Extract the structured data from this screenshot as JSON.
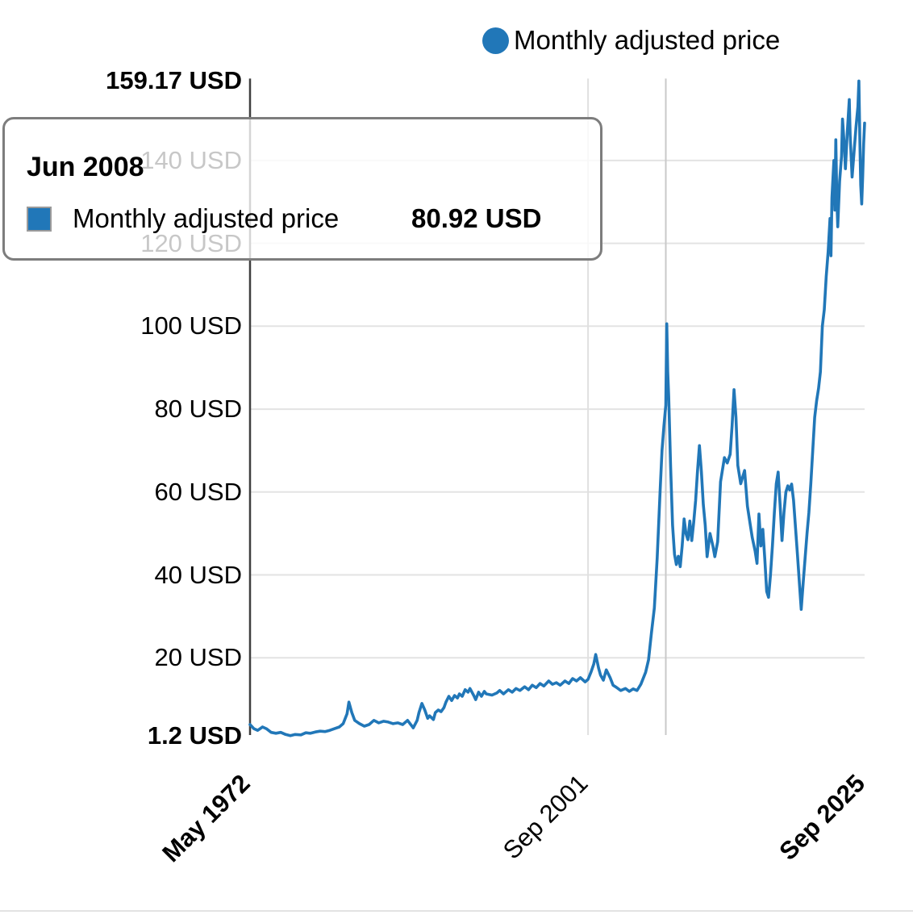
{
  "legend": {
    "label": "Monthly adjusted price"
  },
  "tooltip": {
    "title": "Jun 2008",
    "series_label": "Monthly adjusted price",
    "value": "80.92 USD"
  },
  "chart_data": {
    "type": "line",
    "title": "",
    "unit": "USD",
    "grid": true,
    "legend_position": "top",
    "ylim": [
      0,
      159.17
    ],
    "xlim": [
      "May 1972",
      "Sep 2025"
    ],
    "crosshair_x": "Jun 2008",
    "yticks": [
      {
        "value": 1.2,
        "label": "1.2 USD",
        "bold": true,
        "gridline": false
      },
      {
        "value": 20,
        "label": "20 USD",
        "bold": false,
        "gridline": true
      },
      {
        "value": 40,
        "label": "40 USD",
        "bold": false,
        "gridline": true
      },
      {
        "value": 60,
        "label": "60 USD",
        "bold": false,
        "gridline": true
      },
      {
        "value": 80,
        "label": "80 USD",
        "bold": false,
        "gridline": true
      },
      {
        "value": 100,
        "label": "100 USD",
        "bold": false,
        "gridline": true
      },
      {
        "value": 120,
        "label": "120 USD",
        "bold": false,
        "gridline": true
      },
      {
        "value": 140,
        "label": "140 USD",
        "bold": false,
        "gridline": true
      },
      {
        "value": 159.17,
        "label": "159.17 USD",
        "bold": true,
        "gridline": false
      }
    ],
    "xticks": [
      {
        "label": "May 1972",
        "bold": true,
        "gridline": false
      },
      {
        "label": "Sep 2001",
        "bold": false,
        "gridline": true
      },
      {
        "label": "Sep 2025",
        "bold": true,
        "gridline": false
      }
    ],
    "series": [
      {
        "name": "Monthly adjusted price",
        "color": "#2177b8",
        "points": [
          [
            "May 1972",
            3.9
          ],
          [
            "Sep 1972",
            2.9
          ],
          [
            "Jan 1973",
            2.5
          ],
          [
            "Jun 1973",
            3.3
          ],
          [
            "Oct 1973",
            2.9
          ],
          [
            "Mar 1974",
            2.0
          ],
          [
            "Aug 1974",
            1.8
          ],
          [
            "Jan 1975",
            2.0
          ],
          [
            "Jun 1975",
            1.5
          ],
          [
            "Nov 1975",
            1.2
          ],
          [
            "Apr 1976",
            1.5
          ],
          [
            "Oct 1976",
            1.4
          ],
          [
            "Mar 1977",
            1.9
          ],
          [
            "Aug 1977",
            1.8
          ],
          [
            "Jan 1978",
            2.1
          ],
          [
            "Jun 1978",
            2.3
          ],
          [
            "Nov 1978",
            2.2
          ],
          [
            "Apr 1979",
            2.5
          ],
          [
            "Sep 1979",
            2.9
          ],
          [
            "Feb 1980",
            3.3
          ],
          [
            "Jun 1980",
            4.1
          ],
          [
            "Oct 1980",
            6.5
          ],
          [
            "Dec 1980",
            9.3
          ],
          [
            "Mar 1981",
            6.8
          ],
          [
            "Jun 1981",
            4.9
          ],
          [
            "Nov 1981",
            4.1
          ],
          [
            "Apr 1982",
            3.5
          ],
          [
            "Sep 1982",
            3.9
          ],
          [
            "Feb 1983",
            4.9
          ],
          [
            "Jul 1983",
            4.3
          ],
          [
            "Dec 1983",
            4.7
          ],
          [
            "May 1984",
            4.5
          ],
          [
            "Oct 1984",
            4.1
          ],
          [
            "Mar 1985",
            4.3
          ],
          [
            "Aug 1985",
            3.9
          ],
          [
            "Jan 1986",
            4.9
          ],
          [
            "Jul 1986",
            3.1
          ],
          [
            "Nov 1986",
            4.9
          ],
          [
            "Jan 1987",
            6.8
          ],
          [
            "Apr 1987",
            9.0
          ],
          [
            "Jul 1987",
            7.4
          ],
          [
            "Oct 1987",
            5.4
          ],
          [
            "Dec 1987",
            6.0
          ],
          [
            "Apr 1988",
            5.1
          ],
          [
            "Jun 1988",
            6.8
          ],
          [
            "Sep 1988",
            7.4
          ],
          [
            "Dec 1988",
            7.0
          ],
          [
            "Mar 1989",
            8.0
          ],
          [
            "May 1989",
            9.3
          ],
          [
            "Aug 1989",
            10.7
          ],
          [
            "Nov 1989",
            9.7
          ],
          [
            "Feb 1990",
            10.9
          ],
          [
            "May 1990",
            10.3
          ],
          [
            "Jul 1990",
            11.3
          ],
          [
            "Oct 1990",
            10.7
          ],
          [
            "Jan 1991",
            12.3
          ],
          [
            "Apr 1991",
            11.7
          ],
          [
            "Jun 1991",
            12.6
          ],
          [
            "Oct 1991",
            10.9
          ],
          [
            "Dec 1991",
            9.9
          ],
          [
            "Mar 1992",
            11.7
          ],
          [
            "Jun 1992",
            10.7
          ],
          [
            "Sep 1992",
            11.9
          ],
          [
            "Nov 1992",
            11.3
          ],
          [
            "May 1993",
            11.0
          ],
          [
            "Oct 1993",
            11.5
          ],
          [
            "Jan 1994",
            12.1
          ],
          [
            "May 1994",
            11.3
          ],
          [
            "Oct 1994",
            12.3
          ],
          [
            "Feb 1995",
            11.7
          ],
          [
            "Jun 1995",
            12.6
          ],
          [
            "Oct 1995",
            12.1
          ],
          [
            "Mar 1996",
            13.0
          ],
          [
            "Jul 1996",
            12.3
          ],
          [
            "Nov 1996",
            13.4
          ],
          [
            "Mar 1997",
            12.8
          ],
          [
            "Jul 1997",
            13.8
          ],
          [
            "Nov 1997",
            13.2
          ],
          [
            "Apr 1998",
            14.4
          ],
          [
            "Aug 1998",
            13.6
          ],
          [
            "Dec 1998",
            14.0
          ],
          [
            "Apr 1999",
            13.4
          ],
          [
            "Sep 1999",
            14.4
          ],
          [
            "Jan 2000",
            13.8
          ],
          [
            "May 2000",
            15.0
          ],
          [
            "Sep 2000",
            14.4
          ],
          [
            "Jan 2001",
            15.2
          ],
          [
            "Jun 2001",
            14.2
          ],
          [
            "Sep 2001",
            14.8
          ],
          [
            "Dec 2001",
            16.5
          ],
          [
            "Mar 2002",
            18.5
          ],
          [
            "May 2002",
            20.8
          ],
          [
            "Aug 2002",
            17.5
          ],
          [
            "Oct 2002",
            15.8
          ],
          [
            "Jan 2003",
            14.6
          ],
          [
            "Apr 2003",
            17.1
          ],
          [
            "Aug 2003",
            15.2
          ],
          [
            "Nov 2003",
            13.4
          ],
          [
            "Mar 2004",
            12.8
          ],
          [
            "Jul 2004",
            12.1
          ],
          [
            "Dec 2004",
            12.6
          ],
          [
            "Apr 2005",
            11.9
          ],
          [
            "Aug 2005",
            12.5
          ],
          [
            "Dec 2005",
            12.1
          ],
          [
            "Apr 2006",
            13.6
          ],
          [
            "Sep 2006",
            16.5
          ],
          [
            "Dec 2006",
            19.5
          ],
          [
            "Mar 2007",
            26.0
          ],
          [
            "Jun 2007",
            32.0
          ],
          [
            "Sep 2007",
            44.0
          ],
          [
            "Dec 2007",
            60.0
          ],
          [
            "Feb 2008",
            70.0
          ],
          [
            "Apr 2008",
            76.0
          ],
          [
            "Jun 2008",
            80.92
          ],
          [
            "Jul 2008",
            100.6
          ],
          [
            "Aug 2008",
            89.0
          ],
          [
            "Sep 2008",
            83.0
          ],
          [
            "Nov 2008",
            66.0
          ],
          [
            "Jan 2009",
            52.0
          ],
          [
            "Mar 2009",
            45.0
          ],
          [
            "May 2009",
            42.5
          ],
          [
            "Jul 2009",
            44.5
          ],
          [
            "Sep 2009",
            42.0
          ],
          [
            "Nov 2009",
            47.0
          ],
          [
            "Jan 2010",
            53.5
          ],
          [
            "Mar 2010",
            50.0
          ],
          [
            "May 2010",
            48.5
          ],
          [
            "Jul 2010",
            53.0
          ],
          [
            "Sep 2010",
            48.3
          ],
          [
            "Nov 2010",
            52.7
          ],
          [
            "Jan 2011",
            58.0
          ],
          [
            "Mar 2011",
            65.0
          ],
          [
            "May 2011",
            71.2
          ],
          [
            "Jul 2011",
            65.0
          ],
          [
            "Sep 2011",
            57.0
          ],
          [
            "Nov 2011",
            52.0
          ],
          [
            "Jan 2012",
            44.4
          ],
          [
            "Apr 2012",
            50.0
          ],
          [
            "Jul 2012",
            47.0
          ],
          [
            "Sep 2012",
            44.4
          ],
          [
            "Dec 2012",
            48.0
          ],
          [
            "Mar 2013",
            62.5
          ],
          [
            "Jul 2013",
            68.3
          ],
          [
            "Oct 2013",
            67.0
          ],
          [
            "Jan 2014",
            69.1
          ],
          [
            "Mar 2014",
            76.0
          ],
          [
            "May 2014",
            84.7
          ],
          [
            "Jul 2014",
            78.0
          ],
          [
            "Sep 2014",
            66.4
          ],
          [
            "Dec 2014",
            62.0
          ],
          [
            "Apr 2015",
            65.2
          ],
          [
            "Jul 2015",
            56.6
          ],
          [
            "Oct 2015",
            52.0
          ],
          [
            "Dec 2015",
            49.0
          ],
          [
            "Mar 2016",
            45.7
          ],
          [
            "May 2016",
            42.8
          ],
          [
            "Jul 2016",
            54.7
          ],
          [
            "Sep 2016",
            47.0
          ],
          [
            "Nov 2016",
            51.0
          ],
          [
            "Jan 2017",
            44.0
          ],
          [
            "Mar 2017",
            36.0
          ],
          [
            "May 2017",
            34.6
          ],
          [
            "Jul 2017",
            40.0
          ],
          [
            "Sep 2017",
            47.0
          ],
          [
            "Nov 2017",
            55.0
          ],
          [
            "Jan 2018",
            62.0
          ],
          [
            "Mar 2018",
            64.8
          ],
          [
            "May 2018",
            57.0
          ],
          [
            "Jul 2018",
            48.3
          ],
          [
            "Sep 2018",
            55.0
          ],
          [
            "Nov 2018",
            60.0
          ],
          [
            "Jan 2019",
            61.5
          ],
          [
            "Mar 2019",
            60.5
          ],
          [
            "May 2019",
            61.9
          ],
          [
            "Jul 2019",
            58.0
          ],
          [
            "Nov 2019",
            45.0
          ],
          [
            "Mar 2020",
            31.7
          ],
          [
            "May 2020",
            38.0
          ],
          [
            "Jul 2020",
            44.0
          ],
          [
            "Sep 2020",
            50.0
          ],
          [
            "Nov 2020",
            55.0
          ],
          [
            "Jan 2021",
            62.0
          ],
          [
            "Mar 2021",
            70.0
          ],
          [
            "May 2021",
            78.0
          ],
          [
            "Jul 2021",
            82.0
          ],
          [
            "Sep 2021",
            85.0
          ],
          [
            "Nov 2021",
            89.0
          ],
          [
            "Jan 2022",
            100.0
          ],
          [
            "Mar 2022",
            104.0
          ],
          [
            "May 2022",
            112.0
          ],
          [
            "Jul 2022",
            118.0
          ],
          [
            "Sep 2022",
            126.0
          ],
          [
            "Oct 2022",
            117.0
          ],
          [
            "Nov 2022",
            131.0
          ],
          [
            "Jan 2023",
            140.0
          ],
          [
            "Feb 2023",
            128.0
          ],
          [
            "Mar 2023",
            145.0
          ],
          [
            "Apr 2023",
            131.0
          ],
          [
            "May 2023",
            124.0
          ],
          [
            "Jul 2023",
            135.0
          ],
          [
            "Sep 2023",
            141.0
          ],
          [
            "Oct 2023",
            150.0
          ],
          [
            "Dec 2023",
            143.0
          ],
          [
            "Jan 2024",
            138.0
          ],
          [
            "Mar 2024",
            147.0
          ],
          [
            "May 2024",
            154.7
          ],
          [
            "Jun 2024",
            146.0
          ],
          [
            "Aug 2024",
            136.0
          ],
          [
            "Oct 2024",
            142.0
          ],
          [
            "Dec 2024",
            148.0
          ],
          [
            "Feb 2025",
            153.0
          ],
          [
            "Mar 2025",
            159.17
          ],
          [
            "Apr 2025",
            146.0
          ],
          [
            "May 2025",
            134.0
          ],
          [
            "Jun 2025",
            129.5
          ],
          [
            "Jul 2025",
            136.0
          ],
          [
            "Aug 2025",
            144.0
          ],
          [
            "Sep 2025",
            149.0
          ]
        ]
      }
    ]
  }
}
